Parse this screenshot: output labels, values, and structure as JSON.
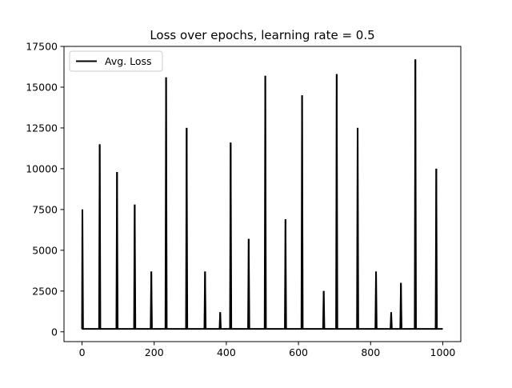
{
  "chart_data": {
    "type": "line",
    "title": "Loss over epochs, learning rate = 0.5",
    "xlabel": "",
    "ylabel": "",
    "xlim": [
      -50,
      1050
    ],
    "ylim": [
      -600,
      17500
    ],
    "x_ticks": [
      0,
      200,
      400,
      600,
      800,
      1000
    ],
    "x_tick_labels": [
      "0",
      "200",
      "400",
      "600",
      "800",
      "1000"
    ],
    "y_ticks": [
      0,
      2500,
      5000,
      7500,
      10000,
      12500,
      15000,
      17500
    ],
    "y_tick_labels": [
      "0",
      "2500",
      "5000",
      "7500",
      "10000",
      "12500",
      "15000",
      "17500"
    ],
    "grid": false,
    "legend_position": "upper-left",
    "series": [
      {
        "name": "Avg. Loss",
        "color": "#000000",
        "baseline": 180,
        "x_range": [
          0,
          1000
        ],
        "spikes": [
          {
            "x": 1,
            "y": 7500
          },
          {
            "x": 49,
            "y": 11500
          },
          {
            "x": 97,
            "y": 9800
          },
          {
            "x": 146,
            "y": 7800
          },
          {
            "x": 192,
            "y": 3700
          },
          {
            "x": 233,
            "y": 15600
          },
          {
            "x": 290,
            "y": 12500
          },
          {
            "x": 341,
            "y": 3700
          },
          {
            "x": 383,
            "y": 1200
          },
          {
            "x": 412,
            "y": 11600
          },
          {
            "x": 462,
            "y": 5700
          },
          {
            "x": 508,
            "y": 15700
          },
          {
            "x": 564,
            "y": 6900
          },
          {
            "x": 610,
            "y": 14500
          },
          {
            "x": 670,
            "y": 2500
          },
          {
            "x": 706,
            "y": 15800
          },
          {
            "x": 764,
            "y": 12500
          },
          {
            "x": 815,
            "y": 3700
          },
          {
            "x": 857,
            "y": 1200
          },
          {
            "x": 884,
            "y": 3000
          },
          {
            "x": 924,
            "y": 16700
          },
          {
            "x": 982,
            "y": 10000
          }
        ]
      }
    ]
  }
}
